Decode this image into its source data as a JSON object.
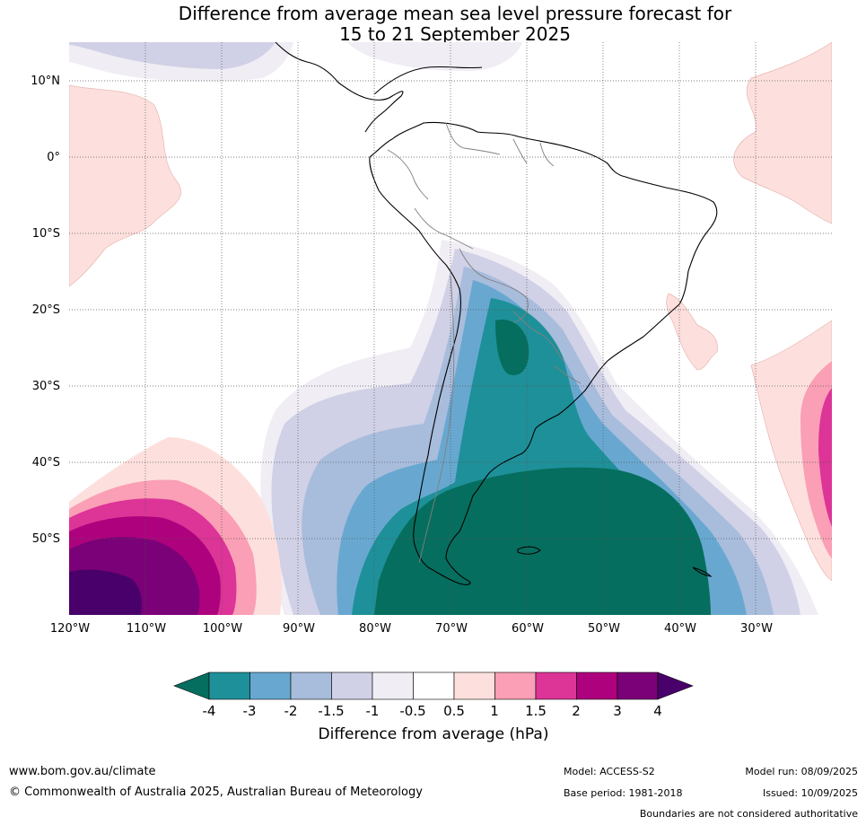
{
  "title_line1": "Difference from average mean sea level pressure forecast for",
  "title_line2": "15 to 21 September 2025",
  "latitude_labels": [
    "10°N",
    "0°",
    "10°S",
    "20°S",
    "30°S",
    "40°S",
    "50°S"
  ],
  "longitude_labels": [
    "120°W",
    "110°W",
    "100°W",
    "90°W",
    "80°W",
    "70°W",
    "60°W",
    "50°W",
    "40°W",
    "30°W"
  ],
  "colorbar": {
    "title": "Difference from average (hPa)",
    "tick_labels": [
      "-4",
      "-3",
      "-2",
      "-1.5",
      "-1",
      "-0.5",
      "0.5",
      "1",
      "1.5",
      "2",
      "3",
      "4"
    ],
    "colors": {
      "below_-4": "#066e5e",
      "-4_-3": "#1e9099",
      "-3_-2": "#68a8d0",
      "-2_-1.5": "#a8bcdc",
      "-1.5_-1": "#d0d1e6",
      "-1_-0.5": "#f0edf4",
      "-0.5_0.5": "#ffffff",
      "0.5_1": "#fde0dd",
      "1_1.5": "#fa9fb5",
      "1.5_2": "#dd3497",
      "2_3": "#ae017e",
      "3_4": "#7a0177",
      "above_4": "#49006a"
    }
  },
  "footer": {
    "website": "www.bom.gov.au/climate",
    "copyright": "© Commonwealth of Australia 2025, Australian Bureau of Meteorology",
    "model": "Model: ACCESS-S2",
    "base_period": "Base period: 1981-2018",
    "model_run": "Model run: 08/09/2025",
    "issued": "Issued: 10/09/2025",
    "disclaimer": "Boundaries are not considered authoritative"
  }
}
